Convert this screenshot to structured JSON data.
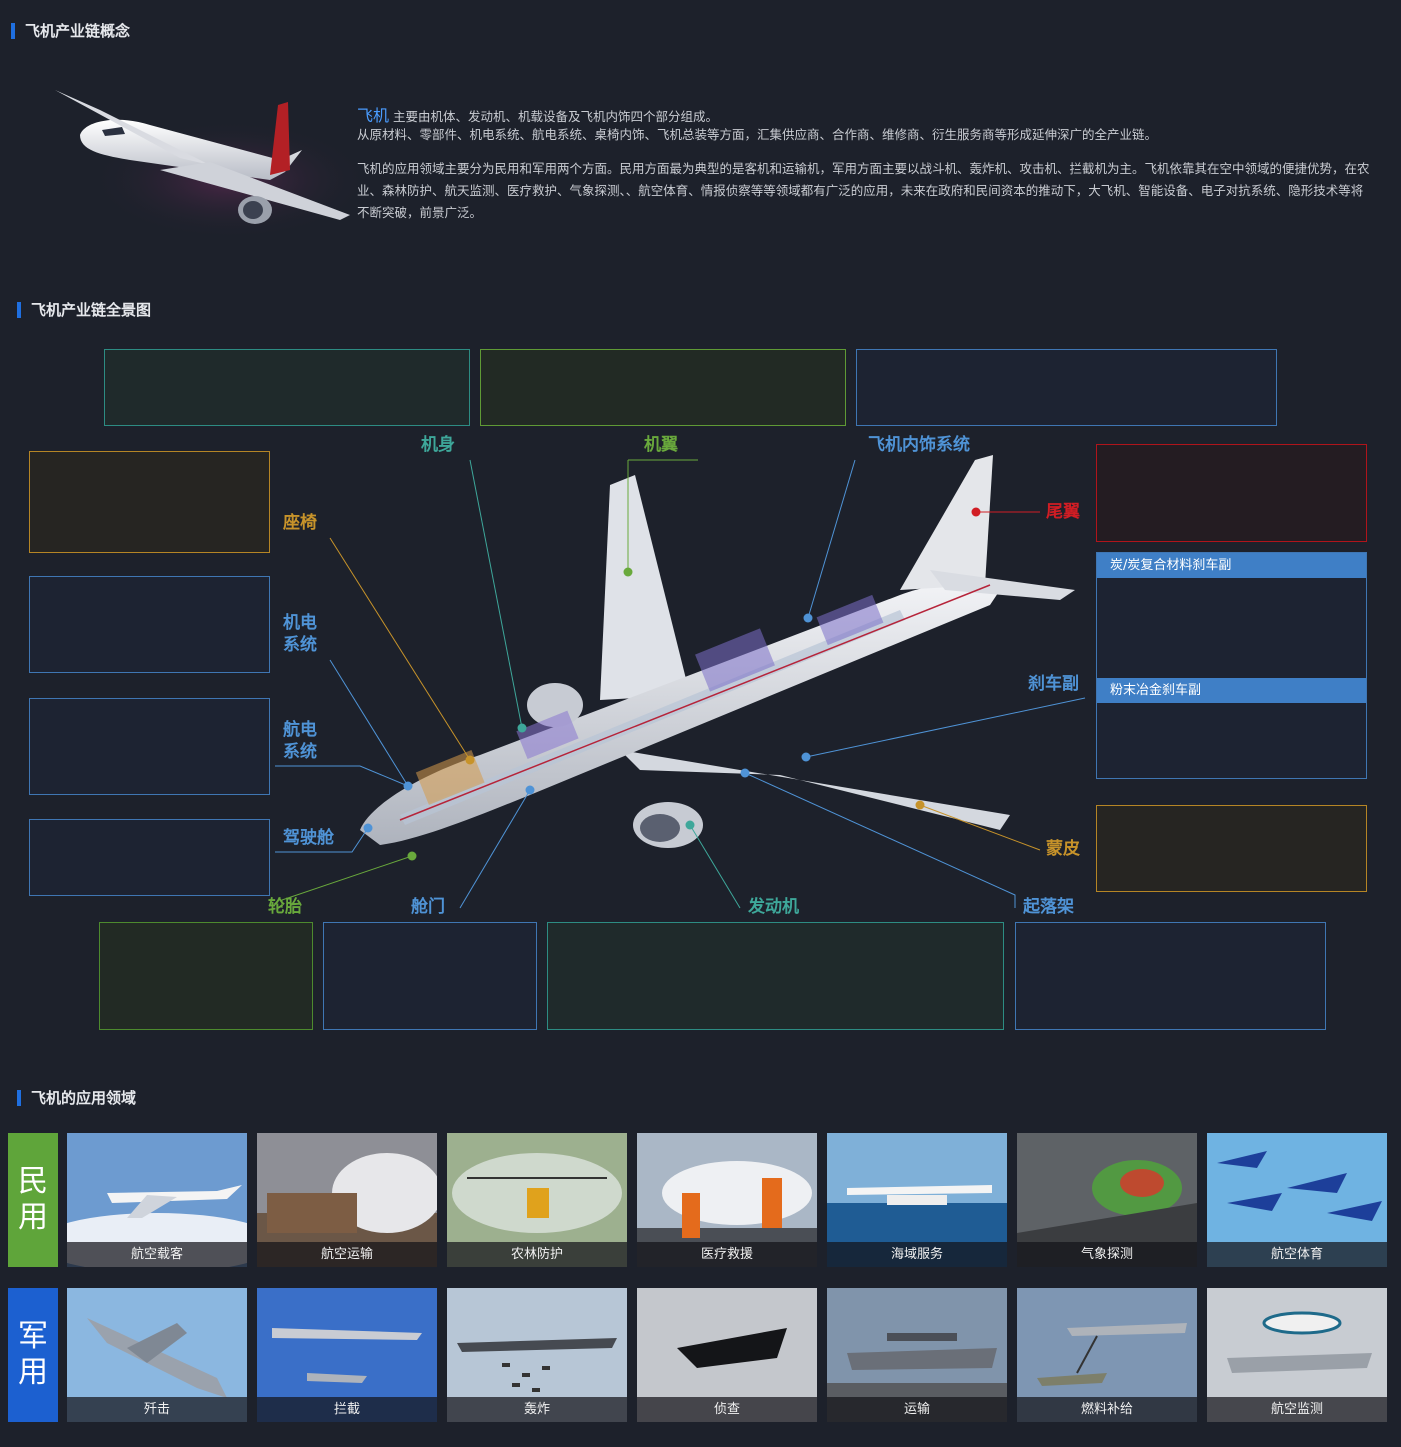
{
  "sections": {
    "concept": "飞机产业链概念",
    "panorama": "飞机产业链全景图",
    "applications": "飞机的应用领域"
  },
  "intro": {
    "highlight": "飞机",
    "line1": "主要由机体、发动机、机载设备及飞机内饰四个部分组成。",
    "line2": "从原材料、零部件、机电系统、航电系统、桌椅内饰、飞机总装等方面，汇集供应商、合作商、维修商、衍生服务商等形成延伸深广的全产业链。",
    "para2": "飞机的应用领域主要分为民用和军用两个方面。民用方面最为典型的是客机和运输机，军用方面主要以战斗机、轰炸机、攻击机、拦截机为主。飞机依靠其在空中领域的便捷优势，在农业、森林防护、航天监测、医疗救护、气象探测、、航空体育、情报侦察等等领域都有广泛的应用，未来在政府和民间资本的推动下，大飞机、智能设备、电子对抗系统、隐形技术等将不断突破，前景广泛。"
  },
  "diagram": {
    "labels": {
      "fuselage": "机身",
      "wing": "机翼",
      "interior": "飞机内饰系统",
      "tail": "尾翼",
      "seat": "座椅",
      "electromech": "机电\n系统",
      "avionics": "航电\n系统",
      "cockpit": "驾驶舱",
      "brake": "刹车副",
      "skin": "蒙皮",
      "tire": "轮胎",
      "door": "舱门",
      "engine": "发动机",
      "landing_gear": "起落架"
    },
    "brake_types": [
      "炭/炭复合材料刹车副",
      "粉末冶金刹车副"
    ],
    "colors": {
      "teal": "#3ea79a",
      "green": "#69a93c",
      "blue": "#4f93d6",
      "gold": "#c7932a",
      "red": "#d11d24"
    }
  },
  "applications": {
    "civil": {
      "label": "民\n用",
      "color": "#5fa53a",
      "items": [
        "航空载客",
        "航空运输",
        "农林防护",
        "医疗救援",
        "海域服务",
        "气象探测",
        "航空体育"
      ]
    },
    "military": {
      "label": "军\n用",
      "color": "#1c60d0",
      "items": [
        "歼击",
        "拦截",
        "轰炸",
        "侦查",
        "运输",
        "燃料补给",
        "航空监测"
      ]
    }
  }
}
